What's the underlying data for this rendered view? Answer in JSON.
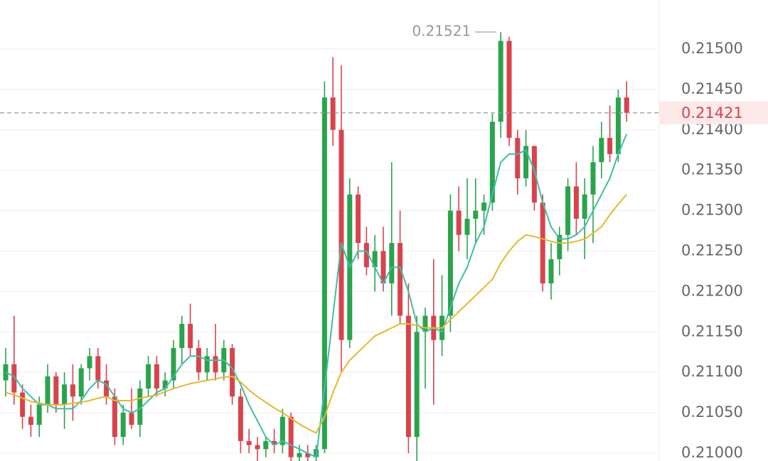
{
  "chart_data": {
    "type": "candlestick",
    "up_color": "#2aa44c",
    "down_color": "#d8434d",
    "open": [
      0.2109,
      0.2111,
      0.21075,
      0.21045,
      0.21035,
      0.2106,
      0.21095,
      0.2106,
      0.21085,
      0.2107,
      0.21105,
      0.2112,
      0.2109,
      0.2107,
      0.2102,
      0.2105,
      0.21035,
      0.2108,
      0.2111,
      0.2108,
      0.2109,
      0.2113,
      0.2116,
      0.2113,
      0.211,
      0.2112,
      0.211,
      0.2113,
      0.2107,
      0.21015,
      0.2101,
      0.21005,
      0.21015,
      0.2101,
      0.21045,
      0.20995,
      0.21,
      0.20995,
      0.21005,
      0.2144,
      0.214,
      0.2114,
      0.2132,
      0.2126,
      0.2123,
      0.2125,
      0.2121,
      0.2126,
      0.2117,
      0.2102,
      0.2115,
      0.2117,
      0.2114,
      0.2117,
      0.213,
      0.2127,
      0.2129,
      0.213,
      0.2131,
      0.2141,
      0.2151,
      0.2139,
      0.2134,
      0.2138,
      0.2131,
      0.2121,
      0.2124,
      0.2127,
      0.2133,
      0.2129,
      0.2132,
      0.2136,
      0.2139,
      0.2137,
      0.2144
    ],
    "high": [
      0.2113,
      0.2117,
      0.21085,
      0.2106,
      0.2107,
      0.2111,
      0.211,
      0.211,
      0.2111,
      0.2111,
      0.2113,
      0.2113,
      0.2111,
      0.2108,
      0.2106,
      0.2108,
      0.2109,
      0.2112,
      0.2112,
      0.211,
      0.2114,
      0.2117,
      0.21185,
      0.2114,
      0.2113,
      0.2116,
      0.2114,
      0.21135,
      0.2108,
      0.2103,
      0.2102,
      0.2102,
      0.2103,
      0.21055,
      0.2105,
      0.2101,
      0.2101,
      0.2101,
      0.2146,
      0.2149,
      0.2148,
      0.2134,
      0.2133,
      0.2128,
      0.2127,
      0.2128,
      0.2136,
      0.213,
      0.2121,
      0.2117,
      0.2118,
      0.2124,
      0.2122,
      0.2132,
      0.2133,
      0.2134,
      0.2134,
      0.2132,
      0.2142,
      0.21521,
      0.21515,
      0.214,
      0.214,
      0.2138,
      0.2132,
      0.2126,
      0.2128,
      0.2134,
      0.2136,
      0.2134,
      0.2138,
      0.2141,
      0.2143,
      0.2145,
      0.2146
    ],
    "low": [
      0.2107,
      0.2106,
      0.2103,
      0.2102,
      0.2102,
      0.2105,
      0.2105,
      0.2103,
      0.2104,
      0.2106,
      0.2109,
      0.2108,
      0.2106,
      0.2101,
      0.2101,
      0.2103,
      0.2102,
      0.2107,
      0.2107,
      0.2107,
      0.2108,
      0.2111,
      0.2112,
      0.2109,
      0.2109,
      0.2109,
      0.2109,
      0.2106,
      0.21,
      0.21,
      0.2099,
      0.20995,
      0.21,
      0.21,
      0.2099,
      0.2099,
      0.2099,
      0.2099,
      0.21,
      0.2138,
      0.211,
      0.2113,
      0.2124,
      0.2122,
      0.212,
      0.212,
      0.2117,
      0.2116,
      0.21,
      0.2099,
      0.2108,
      0.2106,
      0.2112,
      0.2115,
      0.2125,
      0.2124,
      0.2126,
      0.2127,
      0.213,
      0.2139,
      0.2138,
      0.2132,
      0.2133,
      0.213,
      0.212,
      0.2119,
      0.2122,
      0.2125,
      0.2127,
      0.2124,
      0.2126,
      0.2134,
      0.2136,
      0.2136,
      0.2141
    ],
    "close": [
      0.2111,
      0.21075,
      0.21045,
      0.21035,
      0.2106,
      0.21095,
      0.2106,
      0.21085,
      0.2107,
      0.21105,
      0.2112,
      0.2109,
      0.2107,
      0.2102,
      0.2105,
      0.21035,
      0.2108,
      0.2111,
      0.2108,
      0.2109,
      0.2113,
      0.2116,
      0.2113,
      0.211,
      0.2112,
      0.211,
      0.2113,
      0.2107,
      0.21015,
      0.2101,
      0.21005,
      0.21015,
      0.2101,
      0.21045,
      0.20995,
      0.21,
      0.20995,
      0.21005,
      0.2144,
      0.214,
      0.2114,
      0.2132,
      0.2126,
      0.2123,
      0.2125,
      0.2121,
      0.2126,
      0.2117,
      0.2102,
      0.2115,
      0.2117,
      0.2114,
      0.2117,
      0.213,
      0.2127,
      0.2129,
      0.213,
      0.2131,
      0.2141,
      0.2151,
      0.2139,
      0.2134,
      0.2138,
      0.2131,
      0.2121,
      0.2124,
      0.2127,
      0.2133,
      0.2129,
      0.2132,
      0.2136,
      0.2139,
      0.2137,
      0.2144,
      0.21421
    ],
    "overlays": [
      {
        "color": "#3dbfa6",
        "values": [
          0.211,
          0.21095,
          0.2108,
          0.2107,
          0.2106,
          0.2106,
          0.21055,
          0.21055,
          0.21055,
          0.21065,
          0.2108,
          0.2109,
          0.21085,
          0.2107,
          0.21055,
          0.2105,
          0.21055,
          0.21065,
          0.21075,
          0.2108,
          0.21095,
          0.2111,
          0.2112,
          0.2112,
          0.21115,
          0.21115,
          0.21115,
          0.21105,
          0.21085,
          0.2106,
          0.2104,
          0.2102,
          0.2101,
          0.21015,
          0.2101,
          0.21005,
          0.21,
          0.20995,
          0.2108,
          0.2117,
          0.2126,
          0.2123,
          0.2125,
          0.2125,
          0.2123,
          0.2121,
          0.2123,
          0.2123,
          0.212,
          0.2116,
          0.2115,
          0.21155,
          0.2115,
          0.2118,
          0.2121,
          0.2123,
          0.2126,
          0.2128,
          0.2132,
          0.2136,
          0.2137,
          0.2137,
          0.21375,
          0.2135,
          0.2131,
          0.2128,
          0.21265,
          0.21265,
          0.2127,
          0.2128,
          0.213,
          0.2132,
          0.2134,
          0.2137,
          0.21395
        ]
      },
      {
        "color": "#e6b82a",
        "values": [
          0.21075,
          0.21072,
          0.21068,
          0.21064,
          0.21062,
          0.2106,
          0.2106,
          0.2106,
          0.21062,
          0.21063,
          0.21065,
          0.21068,
          0.2107,
          0.21065,
          0.21065,
          0.21065,
          0.21068,
          0.2107,
          0.21072,
          0.21076,
          0.2108,
          0.21083,
          0.21086,
          0.21088,
          0.2109,
          0.21092,
          0.21094,
          0.21095,
          0.21088,
          0.21078,
          0.2107,
          0.21063,
          0.21056,
          0.2105,
          0.21043,
          0.21036,
          0.2103,
          0.21025,
          0.21045,
          0.21075,
          0.211,
          0.21115,
          0.21125,
          0.21135,
          0.21145,
          0.2115,
          0.21155,
          0.2116,
          0.2116,
          0.21158,
          0.21155,
          0.21155,
          0.21155,
          0.21165,
          0.21175,
          0.21185,
          0.21195,
          0.21205,
          0.21215,
          0.21235,
          0.2125,
          0.21262,
          0.2127,
          0.21268,
          0.21265,
          0.21262,
          0.2126,
          0.2126,
          0.21262,
          0.21265,
          0.21272,
          0.2128,
          0.21295,
          0.21308,
          0.2132
        ]
      }
    ],
    "ylim": [
      0.209903,
      0.215606
    ],
    "yticks": [
      {
        "value": 0.21,
        "label": "0.21000"
      },
      {
        "value": 0.2105,
        "label": "0.21050"
      },
      {
        "value": 0.211,
        "label": "0.21100"
      },
      {
        "value": 0.2115,
        "label": "0.21150"
      },
      {
        "value": 0.212,
        "label": "0.21200"
      },
      {
        "value": 0.2125,
        "label": "0.21250"
      },
      {
        "value": 0.213,
        "label": "0.21300"
      },
      {
        "value": 0.2135,
        "label": "0.21350"
      },
      {
        "value": 0.214,
        "label": "0.21400"
      },
      {
        "value": 0.2145,
        "label": "0.21450"
      },
      {
        "value": 0.215,
        "label": "0.21500"
      }
    ],
    "grid": true,
    "last_price": {
      "value": 0.21421,
      "label": "0.21421"
    },
    "high_annotation": {
      "value": 0.21521,
      "label": "0.21521"
    }
  }
}
